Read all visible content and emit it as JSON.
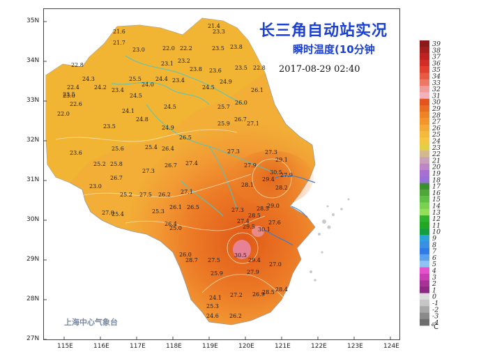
{
  "title": "长三角自动站实况",
  "subtitle": "瞬时温度(10分钟",
  "timestamp": "2017-08-29  02:40",
  "watermark": "上海中心气象台",
  "colors": {
    "land_cool": "#f0b530",
    "land_mid": "#f2a43a",
    "land_warm": "#ef8a2e",
    "land_hot": "#e3681c",
    "hotspot": "#e87aa0",
    "river": "#49c8c8",
    "coast": "#3a7fd0",
    "label_blue": "#1a3fd6"
  },
  "axes": {
    "x_ticks": [
      "115E",
      "116E",
      "117E",
      "118E",
      "119E",
      "120E",
      "121E",
      "122E",
      "123E",
      "124E"
    ],
    "y_ticks": [
      "35N",
      "34N",
      "33N",
      "32N",
      "31N",
      "30N",
      "29N",
      "28N",
      "27N"
    ]
  },
  "legend": {
    "unit": "℃",
    "values": [
      "39",
      "38",
      "37",
      "36",
      "35",
      "34",
      "33",
      "32",
      "31",
      "30",
      "29",
      "28",
      "27",
      "26",
      "25",
      "24",
      "23",
      "22",
      "21",
      "20",
      "19",
      "18",
      "17",
      "16",
      "15",
      "14",
      "13",
      "12",
      "11",
      "10",
      "9",
      "8",
      "7",
      "6",
      "5",
      "4",
      "3",
      "2",
      "1",
      "0",
      "-1",
      "-2",
      "-3",
      "-4"
    ],
    "colors": [
      "#8b1a1a",
      "#a51e1e",
      "#c0231f",
      "#d32e26",
      "#e0402c",
      "#e85a42",
      "#ee7766",
      "#f09a9a",
      "#f2b1bb",
      "#e4541e",
      "#ea6e22",
      "#ef8427",
      "#f2962c",
      "#f4a835",
      "#f5b93c",
      "#f3c743",
      "#e2cf45",
      "#d2b88a",
      "#c9a0b8",
      "#bd86c7",
      "#a86fd2",
      "#9470d8",
      "#3c8f2f",
      "#4fa63a",
      "#5fbf45",
      "#78d24f",
      "#93df5b",
      "#2fb32f",
      "#22a722",
      "#159e3e",
      "#2ba3d8",
      "#3a8fe4",
      "#2f7ce6",
      "#5aa2ee",
      "#8dc2f3",
      "#e84fcc",
      "#c83fb4",
      "#a83196",
      "#8a2a82",
      "#dcdcdc",
      "#c6c6c6",
      "#a8a8a8",
      "#8a8a8a",
      "#6e6e6e"
    ]
  },
  "stations": [
    {
      "t": "21.4"
    },
    {
      "t": "23.3"
    },
    {
      "t": "21.6"
    },
    {
      "t": "21.7"
    },
    {
      "t": "23.0"
    },
    {
      "t": "22.0"
    },
    {
      "t": "22.2"
    },
    {
      "t": "23.5"
    },
    {
      "t": "23.8"
    },
    {
      "t": "22.8"
    },
    {
      "t": "23.1"
    },
    {
      "t": "23.2"
    },
    {
      "t": "23.8"
    },
    {
      "t": "23.6"
    },
    {
      "t": "23.5"
    },
    {
      "t": "22.8"
    },
    {
      "t": "24.3"
    },
    {
      "t": "25.5"
    },
    {
      "t": "24.0"
    },
    {
      "t": "24.4"
    },
    {
      "t": "23.4"
    },
    {
      "t": "24.5"
    },
    {
      "t": "24.9"
    },
    {
      "t": "26.1"
    },
    {
      "t": "22.4"
    },
    {
      "t": "23.5"
    },
    {
      "t": "24.2"
    },
    {
      "t": "23.4"
    },
    {
      "t": "23.0"
    },
    {
      "t": "24.5"
    },
    {
      "t": "25.7"
    },
    {
      "t": "26.0"
    },
    {
      "t": "22.6"
    },
    {
      "t": "24.1"
    },
    {
      "t": "24.8"
    },
    {
      "t": "24.5"
    },
    {
      "t": "26.7"
    },
    {
      "t": "27.1"
    },
    {
      "t": "22.0"
    },
    {
      "t": "23.5"
    },
    {
      "t": "24.9"
    },
    {
      "t": "25.9"
    },
    {
      "t": "26.5"
    },
    {
      "t": "27.3"
    },
    {
      "t": "23.6"
    },
    {
      "t": "25.6"
    },
    {
      "t": "25.4"
    },
    {
      "t": "26.4"
    },
    {
      "t": "27.3"
    },
    {
      "t": "29.1"
    },
    {
      "t": "25.2"
    },
    {
      "t": "25.8"
    },
    {
      "t": "27.3"
    },
    {
      "t": "26.7"
    },
    {
      "t": "27.4"
    },
    {
      "t": "27.9"
    },
    {
      "t": "30.5"
    },
    {
      "t": "27.9"
    },
    {
      "t": "23.0"
    },
    {
      "t": "26.7"
    },
    {
      "t": "26.2"
    },
    {
      "t": "27.1"
    },
    {
      "t": "28.1"
    },
    {
      "t": "29.4"
    },
    {
      "t": "28.2"
    },
    {
      "t": "25.2"
    },
    {
      "t": "27.5"
    },
    {
      "t": "26.1"
    },
    {
      "t": "26.5"
    },
    {
      "t": "27.3"
    },
    {
      "t": "29.0"
    },
    {
      "t": "27.0"
    },
    {
      "t": "25.4"
    },
    {
      "t": "25.3"
    },
    {
      "t": "26.4"
    },
    {
      "t": "27.4"
    },
    {
      "t": "28.5"
    },
    {
      "t": "25.0"
    },
    {
      "t": "29.5"
    },
    {
      "t": "30.1"
    },
    {
      "t": "27.6"
    },
    {
      "t": "28.5"
    },
    {
      "t": "30.5"
    },
    {
      "t": "26.0"
    },
    {
      "t": "28.7"
    },
    {
      "t": "27.5"
    },
    {
      "t": "29.4"
    },
    {
      "t": "27.0"
    },
    {
      "t": "25.9"
    },
    {
      "t": "27.9"
    },
    {
      "t": "28.4"
    },
    {
      "t": "24.1"
    },
    {
      "t": "27.2"
    },
    {
      "t": "26.9"
    },
    {
      "t": "28.5"
    },
    {
      "t": "24.6"
    },
    {
      "t": "26.2"
    },
    {
      "t": "25.3"
    }
  ]
}
